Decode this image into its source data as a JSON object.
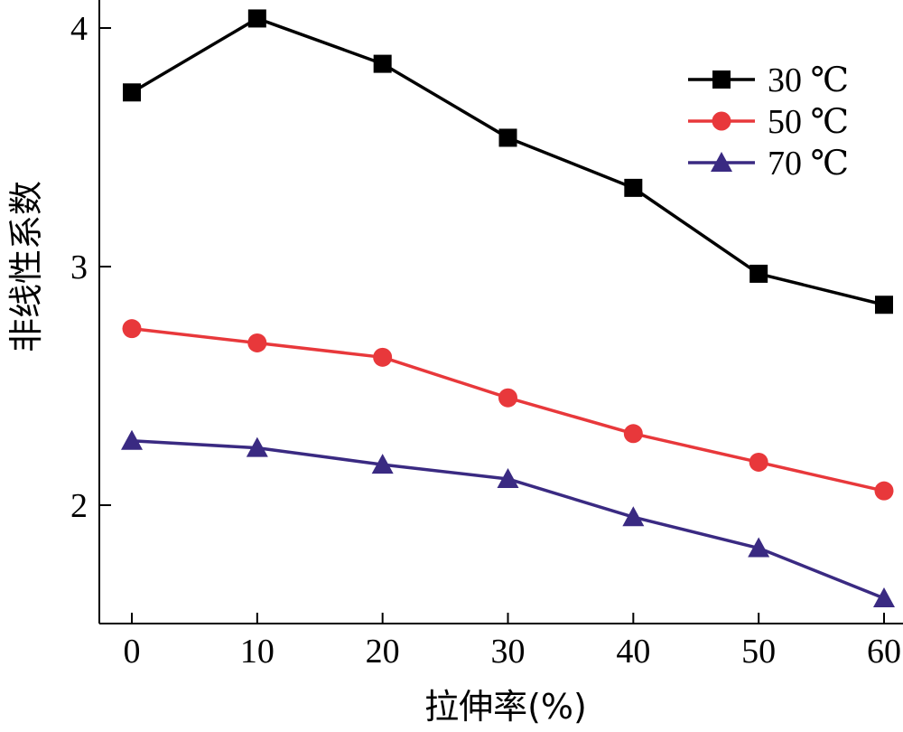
{
  "chart_data": {
    "type": "line",
    "title": "",
    "xlabel": "拉伸率(%)",
    "ylabel": "非线性系数",
    "x": [
      0,
      10,
      20,
      30,
      40,
      50,
      60
    ],
    "xlim": [
      0,
      60
    ],
    "ylim": [
      1.5,
      4.05
    ],
    "x_ticks": [
      0,
      10,
      20,
      30,
      40,
      50,
      60
    ],
    "y_ticks": [
      2,
      3,
      4
    ],
    "grid": false,
    "legend_position": "top-right",
    "series": [
      {
        "name": "30 ℃",
        "color": "#000000",
        "marker": "square",
        "values": [
          3.73,
          4.04,
          3.85,
          3.54,
          3.33,
          2.97,
          2.84
        ]
      },
      {
        "name": "50 ℃",
        "color": "#e8383b",
        "marker": "circle",
        "values": [
          2.74,
          2.68,
          2.62,
          2.45,
          2.3,
          2.18,
          2.06
        ]
      },
      {
        "name": "70 ℃",
        "color": "#3a2a82",
        "marker": "triangle",
        "values": [
          2.27,
          2.24,
          2.17,
          2.11,
          1.95,
          1.82,
          1.61
        ]
      }
    ]
  }
}
